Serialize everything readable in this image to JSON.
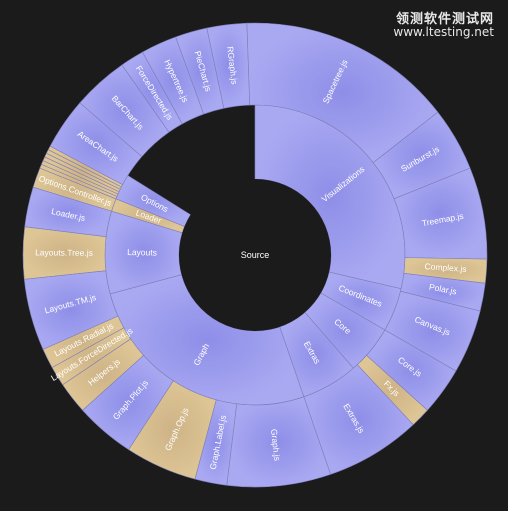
{
  "watermark": {
    "site_cn": "领测软件测试网",
    "url": "www.ltesting.net"
  },
  "colors": {
    "background": "#1b1b1b",
    "blue": "#9e9ef0",
    "tan": "#d9c08c",
    "stroke": "#7d7db8"
  },
  "sunburst": {
    "center": "Source",
    "rings": [
      [
        {
          "label": "Visualizations",
          "a0": 0,
          "a1": 103,
          "tone": "blue"
        },
        {
          "label": "Coordinates",
          "a0": 103,
          "a1": 120,
          "tone": "blue"
        },
        {
          "label": "Core",
          "a0": 120,
          "a1": 139,
          "tone": "blue"
        },
        {
          "label": "Extras",
          "a0": 139,
          "a1": 161,
          "tone": "blue"
        },
        {
          "label": "Graph",
          "a0": 161,
          "a1": 255,
          "tone": "blue"
        },
        {
          "label": "Layouts",
          "a0": 255,
          "a1": 287,
          "tone": "blue"
        },
        {
          "label": "Loader",
          "a0": 287,
          "a1": 292,
          "tone": "tan"
        },
        {
          "label": "Options",
          "a0": 292,
          "a1": 302,
          "tone": "blue"
        }
      ],
      [
        {
          "label": "RGraph.js",
          "a0": 348,
          "a1": 358,
          "tone": "blue"
        },
        {
          "label": "Spacetree.js",
          "a0": 358,
          "a1": 52,
          "tone": "blue"
        },
        {
          "label": "Sunburst.js",
          "a0": 52,
          "a1": 68,
          "tone": "blue"
        },
        {
          "label": "Treemap.js",
          "a0": 68,
          "a1": 91,
          "tone": "blue"
        },
        {
          "label": "Complex.js",
          "a0": 91,
          "a1": 97,
          "tone": "tan"
        },
        {
          "label": "Polar.js",
          "a0": 97,
          "a1": 104,
          "tone": "blue"
        },
        {
          "label": "Canvas.js",
          "a0": 104,
          "a1": 120,
          "tone": "blue"
        },
        {
          "label": "Core.js",
          "a0": 120,
          "a1": 132,
          "tone": "blue"
        },
        {
          "label": "Fx.js",
          "a0": 132,
          "a1": 137,
          "tone": "tan"
        },
        {
          "label": "Extras.js",
          "a0": 137,
          "a1": 161,
          "tone": "blue"
        },
        {
          "label": "Graph.js",
          "a0": 161,
          "a1": 187,
          "tone": "blue"
        },
        {
          "label": "Graph.Label.js",
          "a0": 187,
          "a1": 195,
          "tone": "blue"
        },
        {
          "label": "Graph.Op.js",
          "a0": 195,
          "a1": 213,
          "tone": "tan"
        },
        {
          "label": "Graph.Plot.js",
          "a0": 213,
          "a1": 228,
          "tone": "blue"
        },
        {
          "label": "Helpers.js",
          "a0": 228,
          "a1": 236,
          "tone": "tan"
        },
        {
          "label": "Layouts.ForceDirected.js",
          "a0": 236,
          "a1": 241,
          "tone": "tan"
        },
        {
          "label": "Layouts.Radial.js",
          "a0": 241,
          "a1": 246,
          "tone": "tan"
        },
        {
          "label": "Layouts.TM.js",
          "a0": 246,
          "a1": 264,
          "tone": "blue"
        },
        {
          "label": "Layouts.Tree.js",
          "a0": 264,
          "a1": 277,
          "tone": "tan"
        },
        {
          "label": "Loader.js",
          "a0": 277,
          "a1": 287,
          "tone": "blue"
        },
        {
          "label": "Options.Controller.js",
          "a0": 287,
          "a1": 292,
          "tone": "tan"
        },
        {
          "label": "",
          "a0": 292,
          "a1": 293,
          "tone": "tan"
        },
        {
          "label": "",
          "a0": 293,
          "a1": 294,
          "tone": "tan"
        },
        {
          "label": "",
          "a0": 294,
          "a1": 295,
          "tone": "tan"
        },
        {
          "label": "",
          "a0": 295,
          "a1": 296,
          "tone": "tan"
        },
        {
          "label": "",
          "a0": 296,
          "a1": 297,
          "tone": "tan"
        },
        {
          "label": "",
          "a0": 297,
          "a1": 298,
          "tone": "tan"
        },
        {
          "label": "AreaChart.js",
          "a0": 298,
          "a1": 311,
          "tone": "blue"
        },
        {
          "label": "BarChart.js",
          "a0": 311,
          "a1": 325,
          "tone": "blue"
        },
        {
          "label": "ForceDirected.js",
          "a0": 325,
          "a1": 331,
          "tone": "blue"
        },
        {
          "label": "Hypertree.js",
          "a0": 331,
          "a1": 340,
          "tone": "blue"
        },
        {
          "label": "PieChart.js",
          "a0": 340,
          "a1": 348,
          "tone": "blue"
        }
      ]
    ]
  }
}
